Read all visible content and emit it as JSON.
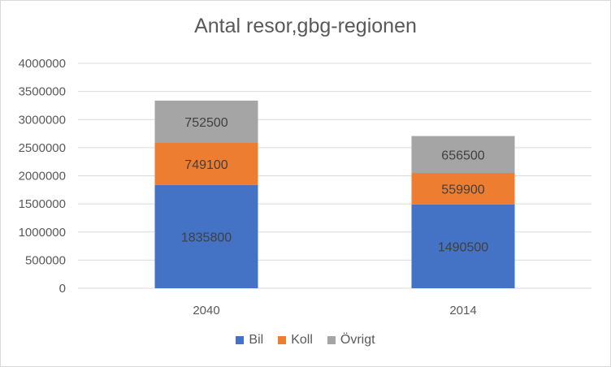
{
  "chart_data": {
    "type": "bar",
    "stacked": true,
    "title": "Antal resor,gbg-regionen",
    "categories": [
      "2040",
      "2014"
    ],
    "series": [
      {
        "name": "Bil",
        "color": "#4472C4",
        "values": [
          1835800,
          1490500
        ]
      },
      {
        "name": "Koll",
        "color": "#ED7D31",
        "values": [
          749100,
          559900
        ]
      },
      {
        "name": "Övrigt",
        "color": "#A5A5A5",
        "values": [
          752500,
          656500
        ]
      }
    ],
    "ylim": [
      0,
      4000000
    ],
    "yticks": [
      "0",
      "500000",
      "1000000",
      "1500000",
      "2000000",
      "2500000",
      "3000000",
      "3500000",
      "4000000"
    ],
    "grid": true,
    "legend_position": "bottom"
  }
}
